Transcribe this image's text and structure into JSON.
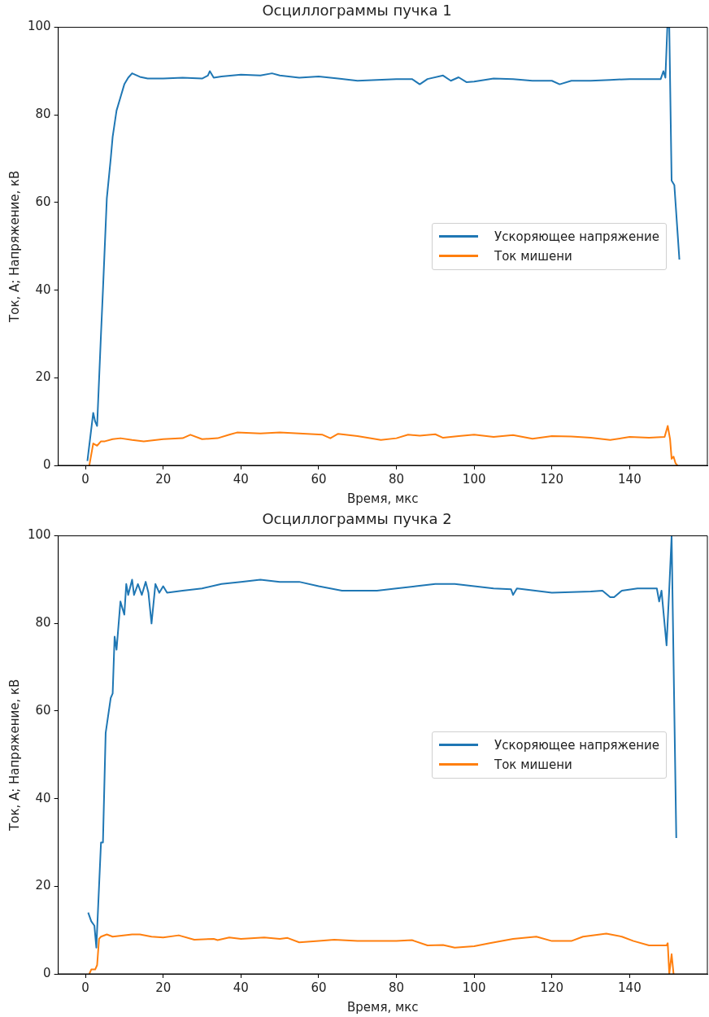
{
  "chart_data": [
    {
      "type": "line",
      "title": "Осциллограммы пучка 1",
      "xlabel": "Время, мкс",
      "ylabel": "Ток, А; Напряжение, кВ",
      "xlim": [
        -7,
        160
      ],
      "ylim": [
        0,
        100
      ],
      "xticks": [
        0,
        20,
        40,
        60,
        80,
        100,
        120,
        140
      ],
      "yticks": [
        0,
        20,
        40,
        60,
        80,
        100
      ],
      "grid": false,
      "legend": "center right",
      "series": [
        {
          "name": "Ускоряющее напряжение",
          "color": "#1f77b4",
          "x": [
            0.5,
            2,
            2.5,
            3,
            4,
            4.5,
            5.5,
            6.5,
            7,
            8,
            9,
            10,
            11,
            12,
            14,
            16,
            20,
            25,
            30,
            31.5,
            32,
            33,
            35,
            40,
            45,
            48,
            50,
            55,
            60,
            65,
            70,
            75,
            80,
            84,
            86,
            88,
            92,
            94,
            96,
            98,
            100,
            105,
            110,
            115,
            120,
            122,
            125,
            130,
            135,
            140,
            145,
            148,
            148.7,
            149.2,
            149.7,
            150.2,
            150.8,
            151.5,
            152.8
          ],
          "values": [
            1,
            12,
            10,
            9,
            30,
            40,
            61,
            70,
            75,
            81,
            84,
            87,
            88.5,
            89.5,
            88.7,
            88.3,
            88.3,
            88.5,
            88.3,
            89,
            90,
            88.5,
            88.8,
            89.2,
            89,
            89.5,
            89,
            88.5,
            88.8,
            88.3,
            87.8,
            88,
            88.2,
            88.2,
            87,
            88.2,
            89,
            87.8,
            88.6,
            87.5,
            87.6,
            88.3,
            88.2,
            87.8,
            87.8,
            87,
            87.8,
            87.8,
            88,
            88.2,
            88.2,
            88.2,
            90,
            88.5,
            100,
            100,
            65,
            64,
            47
          ]
        },
        {
          "name": "Ток мишени",
          "color": "#ff7f0e",
          "x": [
            1,
            2,
            3,
            4,
            5,
            7,
            9,
            12,
            15,
            20,
            25,
            27,
            30,
            34,
            37,
            39,
            45,
            50,
            57,
            61,
            63,
            65,
            70,
            76,
            80,
            83,
            86,
            90,
            92,
            96,
            100,
            105,
            110,
            115,
            120,
            125,
            130,
            135,
            140,
            145,
            149,
            149.8,
            150.4,
            150.8,
            151.3,
            151.8,
            152.3
          ],
          "values": [
            0,
            5,
            4.5,
            5.5,
            5.5,
            6,
            6.2,
            5.8,
            5.5,
            6,
            6.2,
            7,
            6,
            6.2,
            7,
            7.5,
            7.3,
            7.5,
            7.2,
            7,
            6.2,
            7.2,
            6.7,
            5.8,
            6.2,
            7,
            6.8,
            7.1,
            6.3,
            6.7,
            7,
            6.5,
            6.9,
            6.1,
            6.7,
            6.6,
            6.3,
            5.8,
            6.5,
            6.3,
            6.5,
            9,
            6,
            1.5,
            2,
            0.5,
            0
          ]
        }
      ]
    },
    {
      "type": "line",
      "title": "Осциллограммы пучка 2",
      "xlabel": "Время, мкс",
      "ylabel": "Ток, А; Напряжение, кВ",
      "xlim": [
        -7,
        160
      ],
      "ylim": [
        0,
        100
      ],
      "xticks": [
        0,
        20,
        40,
        60,
        80,
        100,
        120,
        140
      ],
      "yticks": [
        0,
        20,
        40,
        60,
        80,
        100
      ],
      "grid": false,
      "legend": "center right",
      "series": [
        {
          "name": "Ускоряющее напряжение",
          "color": "#1f77b4",
          "x": [
            0.7,
            1.5,
            2.3,
            2.8,
            4,
            4.5,
            5.2,
            6.5,
            7,
            7.5,
            8,
            9,
            10,
            10.5,
            11,
            12,
            12.5,
            13.5,
            14.5,
            15.5,
            16.2,
            17,
            18,
            19,
            20,
            21,
            25,
            30,
            35,
            40,
            45,
            50,
            55,
            60,
            66,
            75,
            80,
            85,
            90,
            95,
            100,
            105,
            109.5,
            110,
            111,
            120,
            130,
            133,
            135,
            136,
            138,
            142,
            147,
            147.6,
            148.2,
            149.5,
            150.2,
            150.8,
            152
          ],
          "values": [
            14,
            12,
            11,
            6,
            30,
            30,
            55,
            63,
            64,
            77,
            74,
            85,
            82,
            89,
            86.5,
            90,
            86.5,
            89,
            86.5,
            89.5,
            87,
            80,
            89,
            87,
            88.5,
            87,
            87.5,
            88,
            89,
            89.5,
            90,
            89.5,
            89.5,
            88.5,
            87.5,
            87.5,
            88,
            88.5,
            89,
            89,
            88.5,
            88,
            87.8,
            86.5,
            88,
            87,
            87.3,
            87.5,
            86,
            86,
            87.5,
            88,
            88,
            85,
            87.5,
            75,
            88,
            100,
            31
          ]
        },
        {
          "name": "Ток мишени",
          "color": "#ff7f0e",
          "x": [
            1,
            1.5,
            2.5,
            3,
            3.5,
            4,
            5.5,
            7,
            12,
            14,
            17,
            20,
            24,
            28,
            33,
            34,
            37,
            40,
            46,
            50,
            52,
            55,
            60,
            64,
            70,
            80,
            84,
            88,
            92,
            95,
            100,
            104,
            110,
            116,
            120,
            125,
            128,
            134,
            138,
            141,
            145,
            149.5,
            149.8,
            150.2,
            150.8,
            151.3
          ],
          "values": [
            0,
            1,
            1,
            2,
            8,
            8.5,
            9,
            8.5,
            9,
            9,
            8.5,
            8.3,
            8.8,
            7.8,
            8,
            7.7,
            8.3,
            8,
            8.3,
            8,
            8.2,
            7.2,
            7.5,
            7.8,
            7.5,
            7.5,
            7.7,
            6.5,
            6.6,
            6,
            6.3,
            7,
            8,
            8.5,
            7.5,
            7.5,
            8.5,
            9.2,
            8.5,
            7.5,
            6.5,
            6.5,
            7,
            0,
            4.5,
            0
          ]
        }
      ]
    }
  ]
}
